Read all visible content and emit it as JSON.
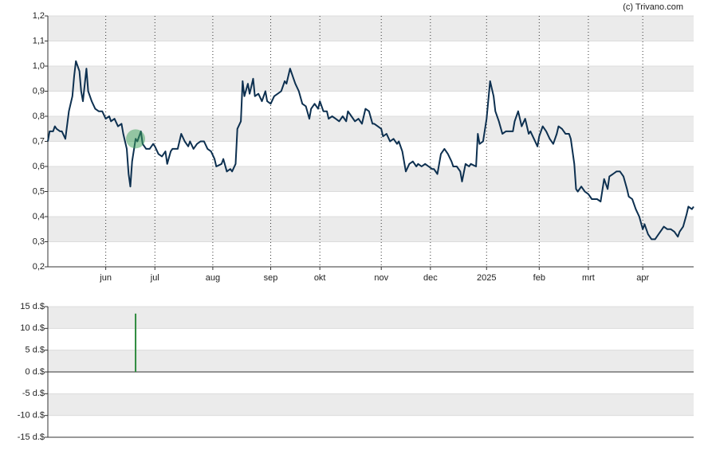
{
  "credit": "(c) Trivano.com",
  "chart_data": [
    {
      "type": "line",
      "color": "#0d3050",
      "xlim": [
        0,
        368
      ],
      "xticks": [
        {
          "value": 33,
          "label": "jun"
        },
        {
          "value": 61,
          "label": "jul"
        },
        {
          "value": 94,
          "label": "aug"
        },
        {
          "value": 127,
          "label": "sep"
        },
        {
          "value": 155,
          "label": "okt"
        },
        {
          "value": 190,
          "label": "nov"
        },
        {
          "value": 218,
          "label": "dec"
        },
        {
          "value": 250,
          "label": "2025"
        },
        {
          "value": 280,
          "label": "feb"
        },
        {
          "value": 308,
          "label": "mrt"
        },
        {
          "value": 339,
          "label": "apr"
        }
      ],
      "ylim": [
        0.2,
        1.2
      ],
      "yticks": [
        {
          "value": 0.2,
          "label": "0,2"
        },
        {
          "value": 0.3,
          "label": "0,3"
        },
        {
          "value": 0.4,
          "label": "0,4"
        },
        {
          "value": 0.5,
          "label": "0,5"
        },
        {
          "value": 0.6,
          "label": "0,6"
        },
        {
          "value": 0.7,
          "label": "0,7"
        },
        {
          "value": 0.8,
          "label": "0,8"
        },
        {
          "value": 0.9,
          "label": "0,9"
        },
        {
          "value": 1.0,
          "label": "1,0"
        },
        {
          "value": 1.1,
          "label": "1,1"
        },
        {
          "value": 1.2,
          "label": "1,2"
        }
      ],
      "x": [
        0,
        1,
        3,
        4,
        5,
        7,
        8,
        10,
        12,
        14,
        15,
        16,
        18,
        19,
        20,
        22,
        23,
        25,
        27,
        29,
        31,
        33,
        35,
        36,
        38,
        40,
        42,
        43,
        45,
        46,
        47,
        48,
        50,
        51,
        53,
        54,
        56,
        58,
        60,
        61,
        63,
        65,
        67,
        68,
        70,
        71,
        74,
        76,
        78,
        80,
        81,
        83,
        85,
        87,
        89,
        91,
        93,
        95,
        96,
        99,
        100,
        102,
        104,
        105,
        107,
        108,
        110,
        111,
        112,
        114,
        115,
        117,
        118,
        120,
        122,
        124,
        125,
        127,
        129,
        131,
        133,
        135,
        136,
        138,
        140,
        141,
        143,
        145,
        147,
        149,
        150,
        152,
        154,
        155,
        157,
        159,
        160,
        162,
        164,
        166,
        168,
        170,
        171,
        173,
        175,
        177,
        179,
        181,
        183,
        185,
        186,
        188,
        190,
        191,
        193,
        195,
        197,
        199,
        200,
        202,
        204,
        206,
        208,
        210,
        211,
        213,
        215,
        217,
        219,
        220,
        222,
        224,
        226,
        228,
        230,
        231,
        233,
        235,
        236,
        238,
        240,
        241,
        244,
        245,
        246,
        248,
        250,
        252,
        254,
        255,
        257,
        259,
        261,
        263,
        265,
        266,
        268,
        270,
        272,
        274,
        275,
        277,
        279,
        280,
        282,
        284,
        286,
        288,
        290,
        291,
        293,
        295,
        297,
        298,
        300,
        301,
        302,
        304,
        306,
        308,
        310,
        311,
        313,
        315,
        317,
        319,
        320,
        322,
        324,
        326,
        328,
        330,
        331,
        333,
        335,
        337,
        339,
        340,
        342,
        344,
        346,
        348,
        350,
        351,
        353,
        355,
        357,
        359,
        360,
        362,
        364,
        365,
        367,
        368
      ],
      "values": [
        0.7,
        0.74,
        0.74,
        0.76,
        0.75,
        0.74,
        0.74,
        0.71,
        0.82,
        0.88,
        0.96,
        1.02,
        0.98,
        0.9,
        0.86,
        0.99,
        0.9,
        0.86,
        0.83,
        0.82,
        0.82,
        0.79,
        0.8,
        0.78,
        0.79,
        0.76,
        0.77,
        0.73,
        0.67,
        0.57,
        0.52,
        0.62,
        0.71,
        0.7,
        0.74,
        0.69,
        0.67,
        0.67,
        0.69,
        0.68,
        0.65,
        0.64,
        0.66,
        0.61,
        0.66,
        0.67,
        0.67,
        0.73,
        0.7,
        0.68,
        0.7,
        0.67,
        0.69,
        0.7,
        0.7,
        0.67,
        0.66,
        0.63,
        0.6,
        0.61,
        0.63,
        0.58,
        0.59,
        0.58,
        0.61,
        0.75,
        0.78,
        0.94,
        0.88,
        0.93,
        0.89,
        0.95,
        0.88,
        0.89,
        0.86,
        0.9,
        0.86,
        0.85,
        0.88,
        0.89,
        0.9,
        0.94,
        0.93,
        0.99,
        0.95,
        0.93,
        0.9,
        0.85,
        0.84,
        0.79,
        0.83,
        0.85,
        0.83,
        0.86,
        0.82,
        0.82,
        0.79,
        0.8,
        0.79,
        0.78,
        0.8,
        0.78,
        0.82,
        0.8,
        0.78,
        0.79,
        0.77,
        0.83,
        0.82,
        0.77,
        0.77,
        0.76,
        0.75,
        0.72,
        0.73,
        0.7,
        0.71,
        0.69,
        0.7,
        0.66,
        0.58,
        0.61,
        0.62,
        0.6,
        0.61,
        0.6,
        0.61,
        0.6,
        0.59,
        0.59,
        0.57,
        0.65,
        0.67,
        0.65,
        0.62,
        0.6,
        0.6,
        0.58,
        0.54,
        0.61,
        0.6,
        0.61,
        0.6,
        0.73,
        0.69,
        0.7,
        0.79,
        0.94,
        0.88,
        0.82,
        0.78,
        0.73,
        0.74,
        0.74,
        0.74,
        0.78,
        0.82,
        0.76,
        0.79,
        0.73,
        0.74,
        0.71,
        0.68,
        0.72,
        0.76,
        0.74,
        0.71,
        0.69,
        0.73,
        0.76,
        0.75,
        0.73,
        0.73,
        0.71,
        0.61,
        0.51,
        0.5,
        0.52,
        0.5,
        0.49,
        0.47,
        0.47,
        0.47,
        0.46,
        0.55,
        0.51,
        0.56,
        0.57,
        0.58,
        0.58,
        0.56,
        0.51,
        0.48,
        0.47,
        0.43,
        0.4,
        0.35,
        0.37,
        0.33,
        0.31,
        0.31,
        0.33,
        0.35,
        0.36,
        0.35,
        0.35,
        0.34,
        0.32,
        0.34,
        0.36,
        0.41,
        0.44,
        0.43,
        0.44
      ]
    },
    {
      "type": "bar",
      "color": "#2e8b3e",
      "xlim": [
        0,
        368
      ],
      "ylim": [
        -15,
        15
      ],
      "yticks": [
        {
          "value": -15,
          "label": "-15 d.$"
        },
        {
          "value": -10,
          "label": "-10 d.$"
        },
        {
          "value": -5,
          "label": "-5 d.$"
        },
        {
          "value": 0,
          "label": "0 d.$"
        },
        {
          "value": 5,
          "label": "5 d.$"
        },
        {
          "value": 10,
          "label": "10 d.$"
        },
        {
          "value": 15,
          "label": "15 d.$"
        }
      ],
      "x": [
        50
      ],
      "values": [
        13.4
      ]
    }
  ]
}
